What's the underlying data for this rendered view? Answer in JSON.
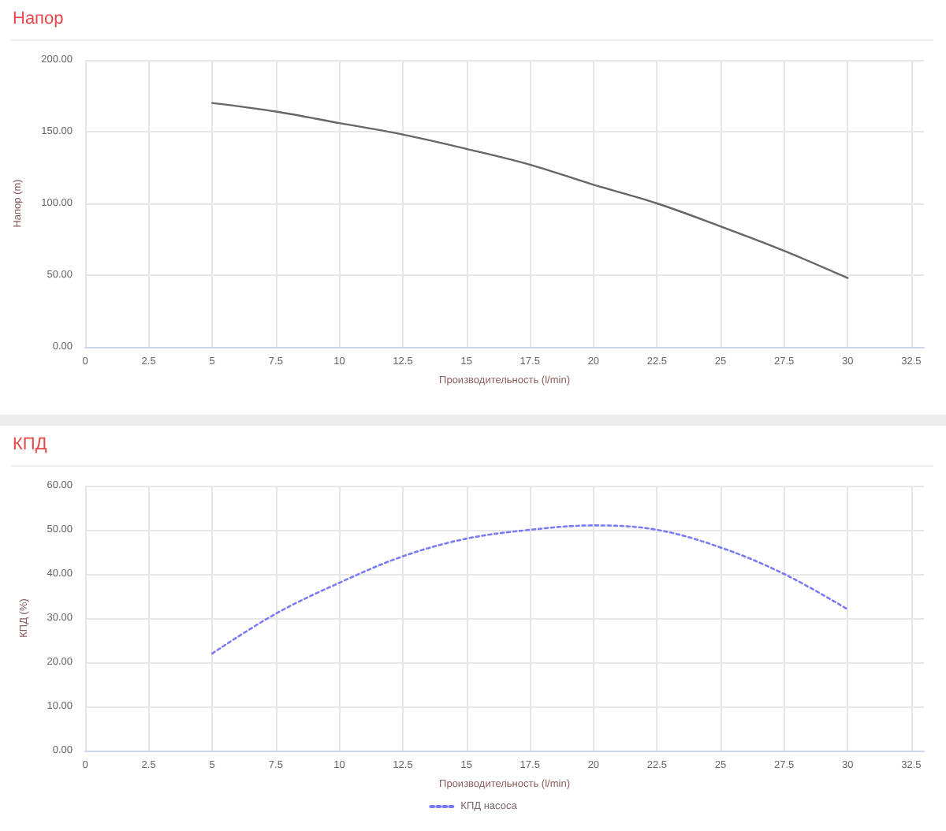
{
  "chart_data": [
    {
      "type": "line",
      "title": "Напор",
      "xlabel": "Производительность (l/min)",
      "ylabel": "Напор (m)",
      "x": [
        5,
        7.5,
        10,
        12.5,
        15,
        17.5,
        20,
        22.5,
        25,
        27.5,
        30
      ],
      "series": [
        {
          "color": "#666666",
          "values": [
            170,
            164,
            156,
            148,
            138,
            127,
            113,
            100,
            84,
            67,
            48
          ]
        }
      ],
      "xlim": [
        0,
        33
      ],
      "xticks": [
        0,
        2.5,
        5,
        7.5,
        10,
        12.5,
        15,
        17.5,
        20,
        22.5,
        25,
        27.5,
        30,
        32.5
      ],
      "ylim": [
        0,
        200
      ],
      "yticks": [
        {
          "value": 0,
          "label": "0.00"
        },
        {
          "value": 50,
          "label": "50.00"
        },
        {
          "value": 100,
          "label": "100.00"
        },
        {
          "value": 150,
          "label": "150.00"
        },
        {
          "value": 200,
          "label": "200.00"
        }
      ],
      "grid": true,
      "legend": false,
      "marker": "none",
      "line_style": "solid"
    },
    {
      "type": "line",
      "title": "КПД",
      "xlabel": "Производительность (l/min)",
      "ylabel": "КПД (%)",
      "x": [
        5,
        7.5,
        10,
        12.5,
        15,
        17.5,
        20,
        22.5,
        25,
        27.5,
        30
      ],
      "series": [
        {
          "name": "КПД насоса",
          "color": "#7b7bf5",
          "values": [
            22,
            31,
            38,
            44,
            48,
            50,
            51,
            50,
            46,
            40,
            32
          ]
        }
      ],
      "xlim": [
        0,
        33
      ],
      "xticks": [
        0,
        2.5,
        5,
        7.5,
        10,
        12.5,
        15,
        17.5,
        20,
        22.5,
        25,
        27.5,
        30,
        32.5
      ],
      "ylim": [
        0,
        60
      ],
      "yticks": [
        {
          "value": 0,
          "label": "0.00"
        },
        {
          "value": 10,
          "label": "10.00"
        },
        {
          "value": 20,
          "label": "20.00"
        },
        {
          "value": 30,
          "label": "30.00"
        },
        {
          "value": 40,
          "label": "40.00"
        },
        {
          "value": 50,
          "label": "50.00"
        },
        {
          "value": 60,
          "label": "60.00"
        }
      ],
      "grid": true,
      "legend": "bottom",
      "marker": "none",
      "line_style": "dotted"
    }
  ]
}
